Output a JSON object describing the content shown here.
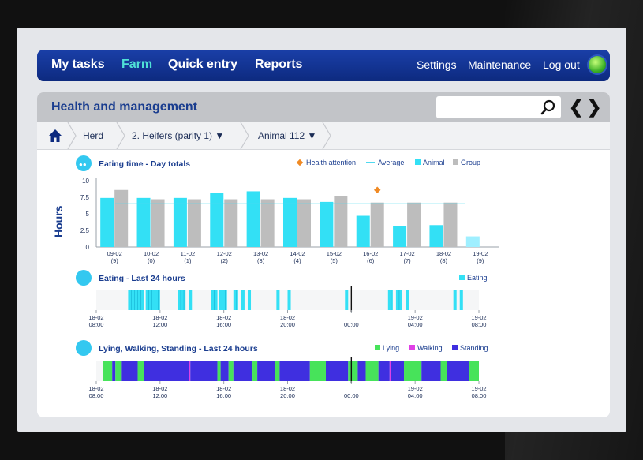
{
  "nav": {
    "items": [
      {
        "label": "My tasks",
        "active": false
      },
      {
        "label": "Farm",
        "active": true
      },
      {
        "label": "Quick entry",
        "active": false
      },
      {
        "label": "Reports",
        "active": false
      }
    ],
    "right": [
      "Settings",
      "Maintenance",
      "Log out"
    ],
    "active_color": "#4fe0d6",
    "bar_color": "#1a3fa8"
  },
  "header": {
    "title": "Health and management",
    "search_value": ""
  },
  "breadcrumb": {
    "items": [
      "Herd",
      "2. Heifers (parity 1)",
      "Animal 112"
    ]
  },
  "colors": {
    "animal": "#33e0f5",
    "group": "#bdbdbd",
    "average": "#4fd9f0",
    "health": "#f08a24",
    "lying": "#47e35a",
    "walking": "#e040e6",
    "standing": "#3f2fe0",
    "title": "#1a3d8f"
  },
  "charts": {
    "eating_day": {
      "title": "Eating time - Day totals",
      "ylabel": "Hours",
      "legend": [
        "Health attention",
        "Average",
        "Animal",
        "Group"
      ],
      "yticks": [
        "10",
        "7.5",
        "5",
        "2.5",
        "0"
      ]
    },
    "eating_24h": {
      "title": "Eating - Last 24 hours",
      "legend": [
        "Eating"
      ]
    },
    "activity_24h": {
      "title": "Lying, Walking, Standing - Last 24 hours",
      "legend": [
        "Lying",
        "Walking",
        "Standing"
      ]
    },
    "time_ticks": [
      {
        "d": "18-02",
        "t": "08:00"
      },
      {
        "d": "18-02",
        "t": "12:00"
      },
      {
        "d": "18-02",
        "t": "16:00"
      },
      {
        "d": "18-02",
        "t": "20:00"
      },
      {
        "d": "",
        "t": "00:00"
      },
      {
        "d": "19-02",
        "t": "04:00"
      },
      {
        "d": "19-02",
        "t": "08:00"
      }
    ]
  },
  "chart_data": [
    {
      "type": "bar",
      "title": "Eating time - Day totals",
      "ylabel": "Hours",
      "ylim": [
        0,
        10
      ],
      "categories": [
        "09-02",
        "10-02",
        "11-02",
        "12-02",
        "13-02",
        "14-02",
        "15-02",
        "16-02",
        "17-02",
        "18-02",
        "19-02"
      ],
      "category_sub": [
        "(9)",
        "(0)",
        "(1)",
        "(2)",
        "(3)",
        "(4)",
        "(5)",
        "(6)",
        "(7)",
        "(8)",
        "(9)"
      ],
      "series": [
        {
          "name": "Animal",
          "values": [
            7.4,
            7.4,
            7.4,
            8.1,
            8.4,
            7.4,
            6.8,
            4.7,
            3.2,
            3.3,
            1.6
          ]
        },
        {
          "name": "Group",
          "values": [
            8.6,
            7.2,
            7.2,
            7.2,
            7.2,
            7.2,
            7.7,
            6.7,
            6.7,
            6.7,
            null
          ]
        }
      ],
      "average": 6.5,
      "health_attention": [
        {
          "category": "16-02",
          "value": 8.6
        }
      ]
    },
    {
      "type": "timeline",
      "title": "Eating - Last 24 hours",
      "x_range_hours": [
        0,
        24
      ],
      "eating_segments": [
        [
          2.0,
          3.0
        ],
        [
          3.1,
          4.0
        ],
        [
          5.1,
          5.6
        ],
        [
          5.8,
          6.0
        ],
        [
          7.2,
          7.6
        ],
        [
          7.7,
          8.2
        ],
        [
          8.6,
          8.9
        ],
        [
          9.1,
          9.3
        ],
        [
          9.5,
          9.7
        ],
        [
          11.3,
          11.5
        ],
        [
          12.0,
          12.2
        ],
        [
          15.6,
          15.8
        ],
        [
          18.3,
          18.6
        ],
        [
          18.8,
          19.2
        ],
        [
          19.4,
          19.6
        ],
        [
          22.4,
          22.6
        ],
        [
          22.8,
          23.0
        ]
      ],
      "now_hour": 16.0
    },
    {
      "type": "timeline",
      "title": "Lying, Walking, Standing - Last 24 hours",
      "x_range_hours": [
        0,
        24
      ],
      "segments": [
        {
          "state": "Lying",
          "from": 0.4,
          "to": 1.0
        },
        {
          "state": "Standing",
          "from": 1.0,
          "to": 1.2
        },
        {
          "state": "Lying",
          "from": 1.2,
          "to": 1.6
        },
        {
          "state": "Standing",
          "from": 1.6,
          "to": 2.6
        },
        {
          "state": "Lying",
          "from": 2.6,
          "to": 3.0
        },
        {
          "state": "Standing",
          "from": 3.0,
          "to": 5.8
        },
        {
          "state": "Walking",
          "from": 5.8,
          "to": 5.9
        },
        {
          "state": "Standing",
          "from": 5.9,
          "to": 7.6
        },
        {
          "state": "Lying",
          "from": 7.6,
          "to": 7.8
        },
        {
          "state": "Standing",
          "from": 7.8,
          "to": 8.3
        },
        {
          "state": "Lying",
          "from": 8.3,
          "to": 8.6
        },
        {
          "state": "Standing",
          "from": 8.6,
          "to": 9.8
        },
        {
          "state": "Lying",
          "from": 9.8,
          "to": 10.1
        },
        {
          "state": "Standing",
          "from": 10.1,
          "to": 11.2
        },
        {
          "state": "Lying",
          "from": 11.2,
          "to": 11.5
        },
        {
          "state": "Standing",
          "from": 11.5,
          "to": 13.4
        },
        {
          "state": "Lying",
          "from": 13.4,
          "to": 14.4
        },
        {
          "state": "Standing",
          "from": 14.4,
          "to": 15.8
        },
        {
          "state": "Lying",
          "from": 15.8,
          "to": 16.4
        },
        {
          "state": "Standing",
          "from": 16.4,
          "to": 16.9
        },
        {
          "state": "Lying",
          "from": 16.9,
          "to": 17.7
        },
        {
          "state": "Standing",
          "from": 17.7,
          "to": 18.4
        },
        {
          "state": "Walking",
          "from": 18.4,
          "to": 18.5
        },
        {
          "state": "Standing",
          "from": 18.5,
          "to": 19.3
        },
        {
          "state": "Lying",
          "from": 19.3,
          "to": 20.4
        },
        {
          "state": "Standing",
          "from": 20.4,
          "to": 21.6
        },
        {
          "state": "Lying",
          "from": 21.6,
          "to": 22.0
        },
        {
          "state": "Standing",
          "from": 22.0,
          "to": 23.4
        },
        {
          "state": "Lying",
          "from": 23.4,
          "to": 24.0
        }
      ],
      "now_hour": 16.0
    }
  ]
}
